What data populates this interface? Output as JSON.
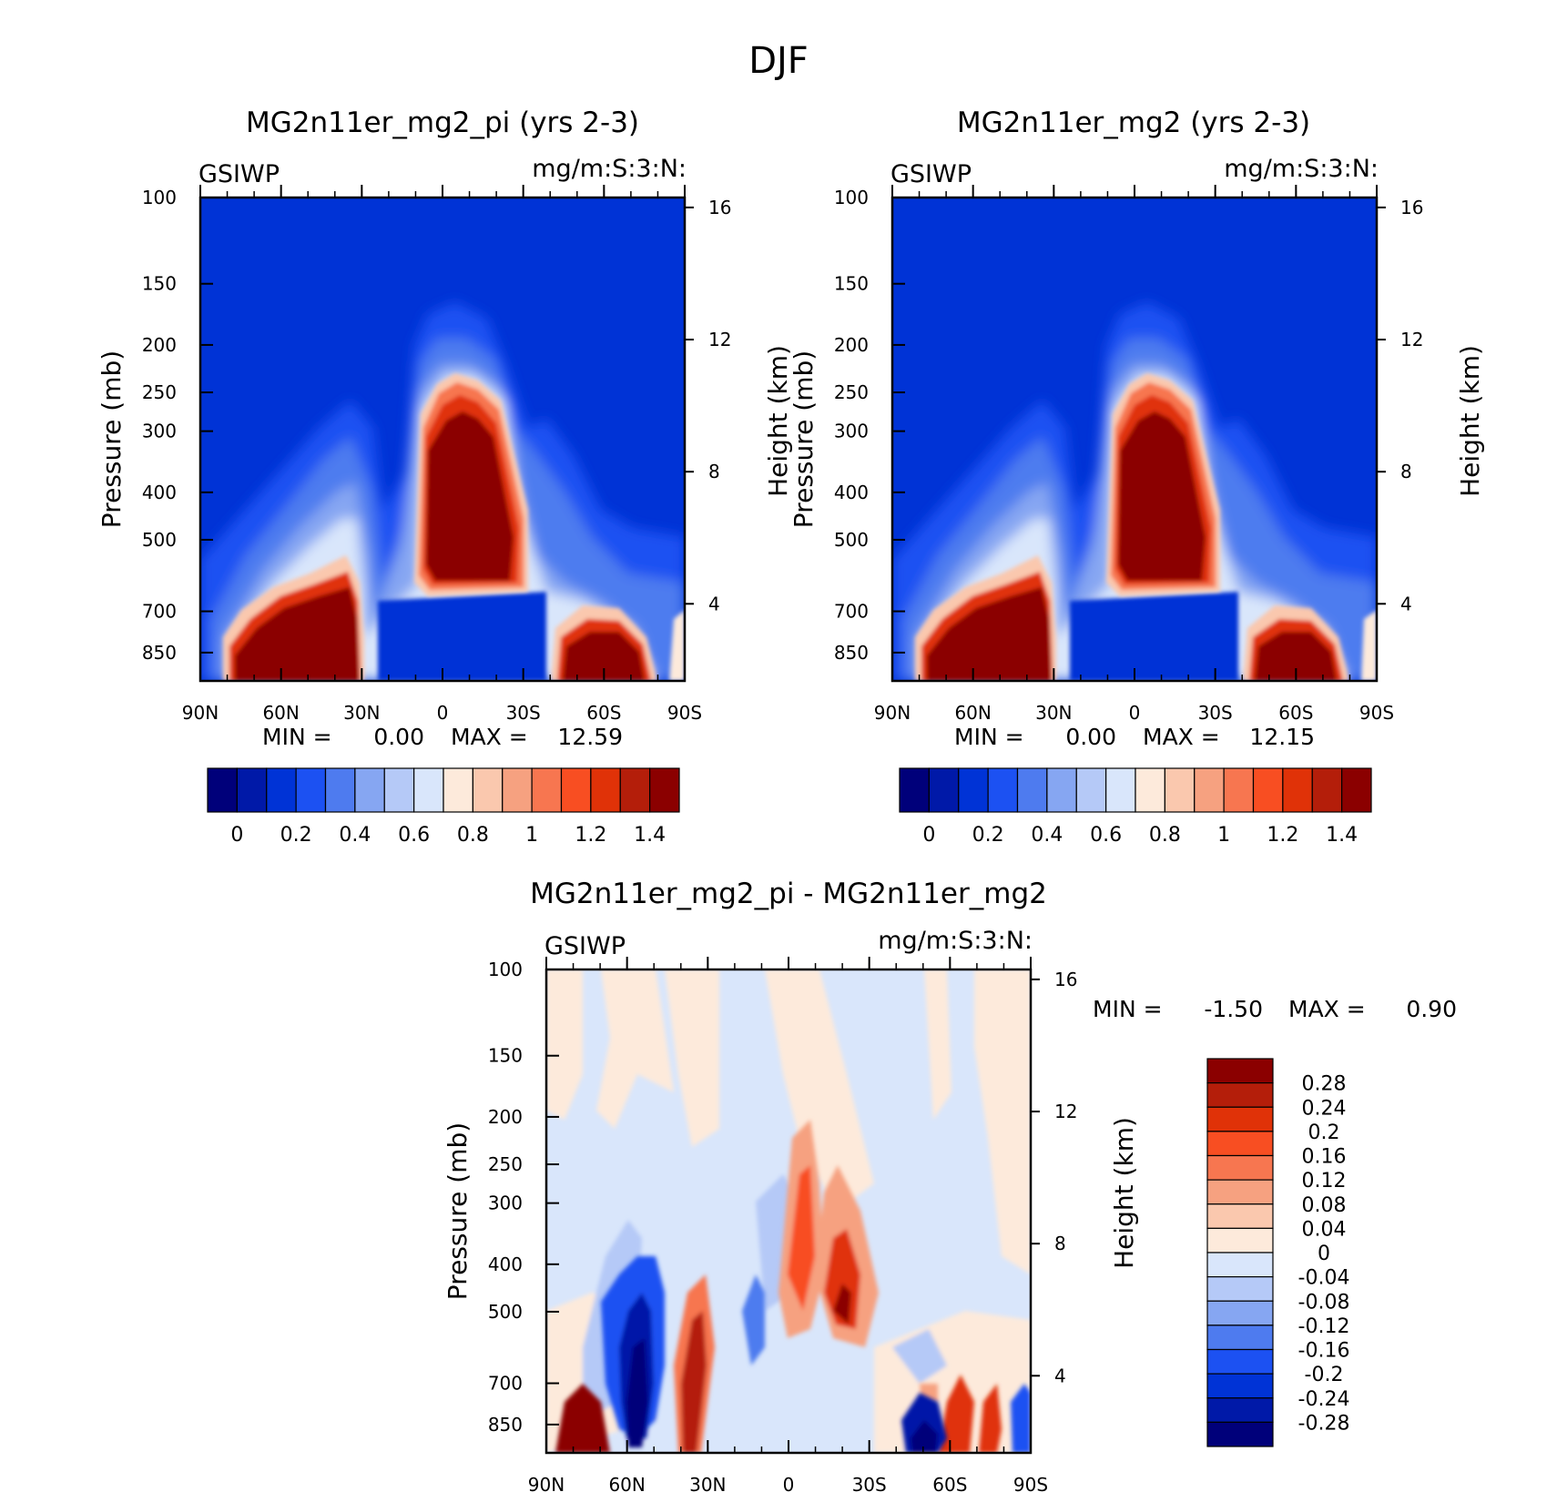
{
  "chart_data": {
    "type": "contour",
    "title": "DJF",
    "pressure_ticks": [
      "100",
      "150",
      "200",
      "250",
      "300",
      "400",
      "500",
      "700",
      "850"
    ],
    "height_ticks": [
      "16",
      "12",
      "8",
      "4"
    ],
    "lat_ticks": [
      "90N",
      "60N",
      "30N",
      "0",
      "30S",
      "60S",
      "90S"
    ],
    "panels": [
      {
        "id": "pi",
        "title": "MG2n11er_mg2_pi (yrs 2-3)",
        "variable": "GSIWP",
        "units": "mg/m:S:3:N:",
        "ylabel": "Pressure (mb)",
        "y2label": "Height (km)",
        "min_label": "MIN =",
        "min_value": "0.00",
        "max_label": "MAX =",
        "max_value": "12.59",
        "levels": [
          "0",
          "0.2",
          "0.4",
          "0.6",
          "0.8",
          "1",
          "1.2",
          "1.4"
        ],
        "colors": [
          "#00007a",
          "#0019a8",
          "#0033d6",
          "#1c51f2",
          "#4e7bef",
          "#86a6f2",
          "#b5c9f7",
          "#d9e6fb",
          "#fdeadb",
          "#fac8ae",
          "#f6a180",
          "#f77650",
          "#f84e22",
          "#e03208",
          "#b41e0a",
          "#8b0000"
        ]
      },
      {
        "id": "ctl",
        "title": "MG2n11er_mg2 (yrs 2-3)",
        "variable": "GSIWP",
        "units": "mg/m:S:3:N:",
        "ylabel": "Pressure (mb)",
        "y2label": "Height (km)",
        "min_label": "MIN =",
        "min_value": "0.00",
        "max_label": "MAX =",
        "max_value": "12.15",
        "levels": [
          "0",
          "0.2",
          "0.4",
          "0.6",
          "0.8",
          "1",
          "1.2",
          "1.4"
        ],
        "colors": [
          "#00007a",
          "#0019a8",
          "#0033d6",
          "#1c51f2",
          "#4e7bef",
          "#86a6f2",
          "#b5c9f7",
          "#d9e6fb",
          "#fdeadb",
          "#fac8ae",
          "#f6a180",
          "#f77650",
          "#f84e22",
          "#e03208",
          "#b41e0a",
          "#8b0000"
        ]
      },
      {
        "id": "diff",
        "title": "MG2n11er_mg2_pi - MG2n11er_mg2",
        "variable": "GSIWP",
        "units": "mg/m:S:3:N:",
        "ylabel": "Pressure (mb)",
        "y2label": "Height (km)",
        "min_label": "MIN =",
        "min_value": "-1.50",
        "max_label": "MAX =",
        "max_value": "0.90",
        "levels": [
          "0.28",
          "0.24",
          "0.2",
          "0.16",
          "0.12",
          "0.08",
          "0.04",
          "0",
          "-0.04",
          "-0.08",
          "-0.12",
          "-0.16",
          "-0.2",
          "-0.24",
          "-0.28"
        ],
        "colors": [
          "#8b0000",
          "#b41e0a",
          "#e03208",
          "#f84e22",
          "#f77650",
          "#f6a180",
          "#fac8ae",
          "#fdeadb",
          "#d9e6fb",
          "#b5c9f7",
          "#86a6f2",
          "#4e7bef",
          "#1c51f2",
          "#0033d6",
          "#0019a8",
          "#00007a"
        ]
      }
    ]
  }
}
